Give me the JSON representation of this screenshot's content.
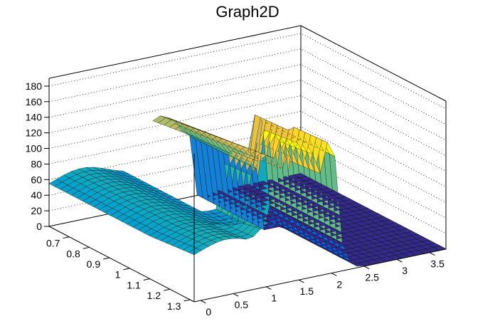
{
  "chart_data": {
    "type": "surface3d",
    "title": "Graph2D",
    "xlabel": "",
    "ylabel": "",
    "zlabel": "",
    "xlim": [
      -0.1,
      3.75
    ],
    "ylim": [
      0.6,
      1.32
    ],
    "zlim": [
      0,
      190
    ],
    "x_ticks": [
      "0",
      "0.5",
      "1",
      "1.5",
      "2",
      "2.5",
      "3",
      "3.5"
    ],
    "x_tick_values": [
      0,
      0.5,
      1,
      1.5,
      2,
      2.5,
      3,
      3.5
    ],
    "y_ticks": [
      "0.7",
      "0.8",
      "0.9",
      "1",
      "1.1",
      "1.2",
      "1.3"
    ],
    "y_tick_values": [
      0.7,
      0.8,
      0.9,
      1.0,
      1.1,
      1.2,
      1.3
    ],
    "z_ticks": [
      "0",
      "20",
      "40",
      "60",
      "80",
      "100",
      "120",
      "140",
      "160",
      "180"
    ],
    "z_tick_values": [
      0,
      20,
      40,
      60,
      80,
      100,
      120,
      140,
      160,
      180
    ],
    "grid": true,
    "palette": [
      "#352a87",
      "#0f5cdd",
      "#1481d6",
      "#06a4ca",
      "#2eb7a4",
      "#87bf77",
      "#d1bb59",
      "#fec832",
      "#f9fb0e"
    ],
    "surface_features": [
      {
        "name": "left plateau",
        "x_range": [
          -0.1,
          1.35
        ],
        "y_range": [
          0.6,
          1.32
        ],
        "approx_z": 60
      },
      {
        "name": "ridge along high y",
        "x_range": [
          0.9,
          2.1
        ],
        "y_range": [
          1.1,
          1.32
        ],
        "approx_peak_z": 145
      },
      {
        "name": "near-zero region",
        "x_range": [
          2.1,
          3.75
        ],
        "y_range": [
          0.6,
          1.32
        ],
        "approx_z": 0
      },
      {
        "name": "missing region (gap)",
        "x_range": [
          1.05,
          1.45
        ],
        "y_range": [
          0.6,
          0.98
        ]
      }
    ]
  }
}
